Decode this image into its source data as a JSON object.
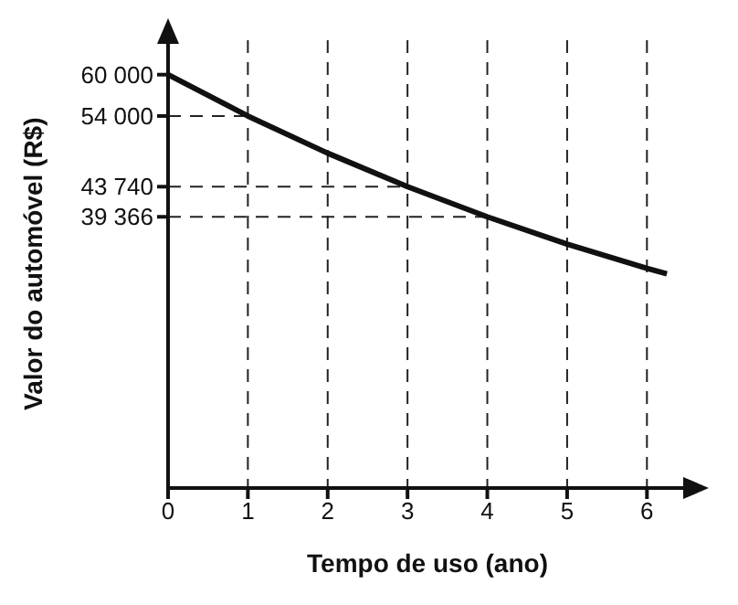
{
  "chart_data": {
    "type": "line",
    "xlabel": "Tempo de uso (ano)",
    "ylabel": "Valor do automóvel (R$)",
    "x": [
      0,
      1,
      2,
      3,
      4,
      5,
      6,
      6.25
    ],
    "series": [
      {
        "color": "#111111",
        "values": [
          60000,
          54000,
          48600,
          43740,
          39366,
          35400,
          31900,
          31100
        ]
      }
    ],
    "xlim": [
      0,
      6.5
    ],
    "ylim": [
      0,
      65000
    ],
    "xticks": [
      0,
      1,
      2,
      3,
      4,
      5,
      6
    ],
    "yticks": [
      {
        "value": 39366,
        "label": "39 366"
      },
      {
        "value": 43740,
        "label": "43 740"
      },
      {
        "value": 54000,
        "label": "54 000"
      },
      {
        "value": 60000,
        "label": "60 000"
      }
    ],
    "grid": "x",
    "marker": "none",
    "line_style": "solid",
    "ref_lines": [
      {
        "axis": "y",
        "value": 54000,
        "line_style": "dashed"
      },
      {
        "axis": "y",
        "value": 43740,
        "line_style": "dashed"
      },
      {
        "axis": "y",
        "value": 39366,
        "line_style": "dashed"
      }
    ]
  }
}
